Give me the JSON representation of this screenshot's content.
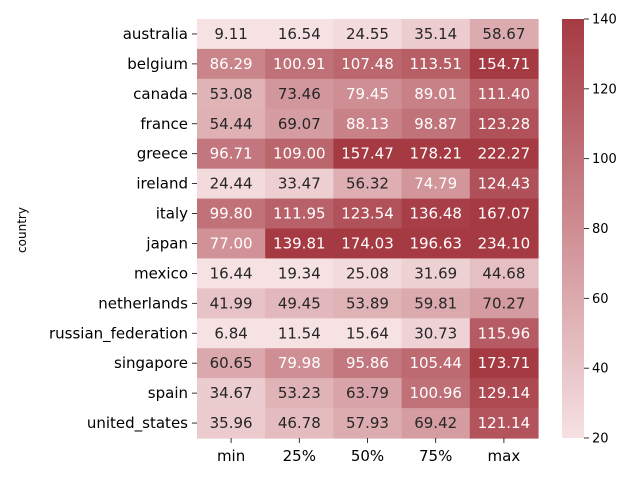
{
  "chart_data": {
    "type": "heatmap",
    "title": "",
    "xlabel": "",
    "ylabel": "country",
    "columns": [
      "min",
      "25%",
      "50%",
      "75%",
      "max"
    ],
    "rows": [
      "australia",
      "belgium",
      "canada",
      "france",
      "greece",
      "ireland",
      "italy",
      "japan",
      "mexico",
      "netherlands",
      "russian_federation",
      "singapore",
      "spain",
      "united_states"
    ],
    "values": [
      [
        9.11,
        16.54,
        24.55,
        35.14,
        58.67
      ],
      [
        86.29,
        100.91,
        107.48,
        113.51,
        154.71
      ],
      [
        53.08,
        73.46,
        79.45,
        89.01,
        111.4
      ],
      [
        54.44,
        69.07,
        88.13,
        98.87,
        123.28
      ],
      [
        96.71,
        109.0,
        157.47,
        178.21,
        222.27
      ],
      [
        24.44,
        33.47,
        56.32,
        74.79,
        124.43
      ],
      [
        99.8,
        111.95,
        123.54,
        136.48,
        167.07
      ],
      [
        77.0,
        139.81,
        174.03,
        196.63,
        234.1
      ],
      [
        16.44,
        19.34,
        25.08,
        31.69,
        44.68
      ],
      [
        41.99,
        49.45,
        53.89,
        59.81,
        70.27
      ],
      [
        6.84,
        11.54,
        15.64,
        30.73,
        115.96
      ],
      [
        60.65,
        79.98,
        95.86,
        105.44,
        173.71
      ],
      [
        34.67,
        53.23,
        63.79,
        100.96,
        129.14
      ],
      [
        35.96,
        46.78,
        57.93,
        69.42,
        121.14
      ]
    ],
    "value_format": "2 decimals",
    "colorbar": {
      "vmin": 20,
      "vmax": 140,
      "ticks": [
        20,
        40,
        60,
        80,
        100,
        120,
        140
      ],
      "color_low": "#f6e1e3",
      "color_high": "#a63a43"
    },
    "annotation_colors": {
      "dark_text": "#262626",
      "light_text": "#ffffff"
    },
    "grid": false,
    "legend": "colorbar-right"
  }
}
